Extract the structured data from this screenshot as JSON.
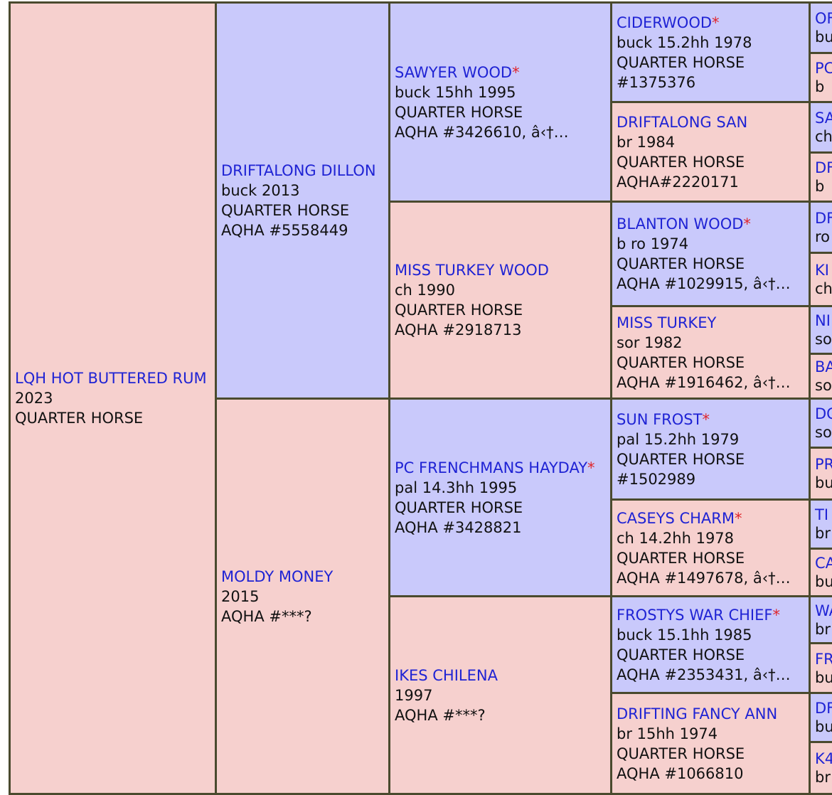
{
  "subject": {
    "name": "LQH HOT BUTTERED RUM",
    "line1": "2023",
    "line2": "QUARTER HORSE"
  },
  "gen2": [
    {
      "name": "DRIFTALONG DILLON",
      "star": "",
      "line1": "buck 2013",
      "line2": "QUARTER HORSE",
      "line3": "AQHA #5558449"
    },
    {
      "name": "MOLDY MONEY",
      "star": "",
      "line1": "2015",
      "line2": "AQHA #***?",
      "line3": ""
    }
  ],
  "gen3": [
    {
      "name": "SAWYER WOOD",
      "star": "*",
      "line1": "buck 15hh 1995",
      "line2": "QUARTER HORSE",
      "line3": "AQHA #3426610, â‹†…"
    },
    {
      "name": "MISS TURKEY WOOD",
      "star": "",
      "line1": "ch 1990",
      "line2": "QUARTER HORSE",
      "line3": "AQHA #2918713"
    },
    {
      "name": "PC FRENCHMANS HAYDAY",
      "star": "*",
      "line1": "pal 14.3hh 1995",
      "line2": "QUARTER HORSE",
      "line3": "AQHA #3428821"
    },
    {
      "name": "IKES CHILENA",
      "star": "",
      "line1": "1997",
      "line2": "AQHA #***?",
      "line3": ""
    }
  ],
  "gen4": [
    {
      "name": "CIDERWOOD",
      "star": "*",
      "line1": "buck 15.2hh 1978",
      "line2": "QUARTER HORSE",
      "line3": "#1375376"
    },
    {
      "name": "DRIFTALONG SAN",
      "star": "",
      "line1": "br 1984",
      "line2": "QUARTER HORSE",
      "line3": "AQHA#2220171"
    },
    {
      "name": "BLANTON WOOD",
      "star": "*",
      "line1": "b ro 1974",
      "line2": "QUARTER HORSE",
      "line3": "AQHA #1029915, â‹†…"
    },
    {
      "name": "MISS TURKEY",
      "star": "",
      "line1": "sor 1982",
      "line2": "QUARTER HORSE",
      "line3": "AQHA #1916462, â‹†…"
    },
    {
      "name": "SUN FROST",
      "star": "*",
      "line1": "pal 15.2hh 1979",
      "line2": "QUARTER HORSE",
      "line3": "#1502989"
    },
    {
      "name": "CASEYS CHARM",
      "star": "*",
      "line1": "ch 14.2hh 1978",
      "line2": "QUARTER HORSE",
      "line3": "AQHA #1497678, â‹†…"
    },
    {
      "name": "FROSTYS WAR CHIEF",
      "star": "*",
      "line1": "buck 15.1hh 1985",
      "line2": "QUARTER HORSE",
      "line3": "AQHA #2353431, â‹†…"
    },
    {
      "name": "DRIFTING FANCY ANN",
      "star": "",
      "line1": "br 15hh 1974",
      "line2": "QUARTER HORSE",
      "line3": "AQHA #1066810"
    }
  ],
  "gen5": [
    {
      "name": "OF",
      "line1": "bu"
    },
    {
      "name": "PC",
      "line1": "b"
    },
    {
      "name": "SA",
      "line1": "ch"
    },
    {
      "name": "DF",
      "line1": "b"
    },
    {
      "name": "DF",
      "line1": "ro"
    },
    {
      "name": "KI",
      "line1": "ch"
    },
    {
      "name": "NI",
      "line1": "so"
    },
    {
      "name": "BA",
      "line1": "so"
    },
    {
      "name": "DC",
      "line1": "so"
    },
    {
      "name": "PR",
      "line1": "bu"
    },
    {
      "name": "TI",
      "line1": "br"
    },
    {
      "name": "CA",
      "line1": "bu"
    },
    {
      "name": "WA",
      "line1": "br"
    },
    {
      "name": "FR",
      "line1": "bu"
    },
    {
      "name": "DF",
      "line1": "bu"
    },
    {
      "name": "K4",
      "line1": "br"
    }
  ],
  "colors": {
    "sire_bg": "#c9c9fb",
    "dam_bg": "#f6d0ce",
    "link": "#1f23d4",
    "star": "#e0252b",
    "border": "#4a4a2e"
  }
}
